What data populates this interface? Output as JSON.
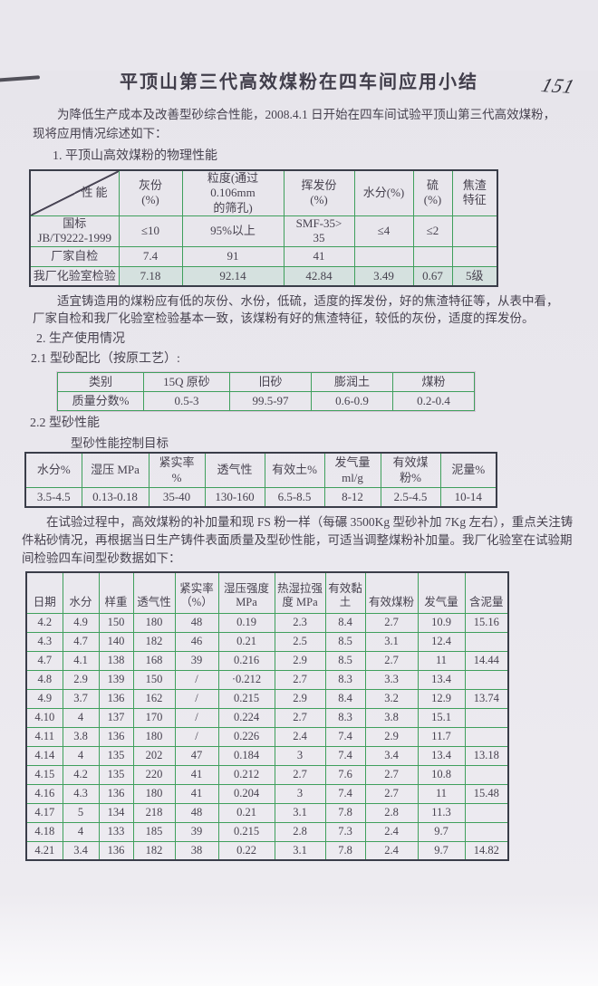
{
  "page_number": "151",
  "title": "平顶山第三代高效煤粉在四车间应用小结",
  "paragraphs": {
    "intro": "为降低生产成本及改善型砂综合性能，2008.4.1 日开始在四车间试验平顶山第三代高效煤粉，现将应用情况综述如下：",
    "analysis": "适宜铸造用的煤粉应有低的灰份、水份，低硫，适度的挥发份，好的焦渣特征等，从表中看，厂家自检和我厂化验室检验基本一致，该煤粉有好的焦渣特征，较低的灰份，适度的挥发份。",
    "trial": "在试验过程中，高效煤粉的补加量和现 FS 粉一样（每碾 3500Kg 型砂补加 7Kg 左右），重点关注铸件粘砂情况，再根据当日生产铸件表面质量及型砂性能，可适当调整煤粉补加量。我厂化验室在试验期间检验四车间型砂数据如下："
  },
  "sections": {
    "s1": "1. 平顶山高效煤粉的物理性能",
    "s2": "2. 生产使用情况",
    "s2_1": "2.1 型砂配比（按原工艺）:",
    "s2_2": "2.2 型砂性能",
    "target_label": "型砂性能控制目标"
  },
  "table1": {
    "corner_label": "性能",
    "headers": [
      "灰份\n(%)",
      "粒度(通过 0.106mm\n的筛孔)",
      "挥发份\n(%)",
      "水分(%)",
      "硫\n(%)",
      "焦渣\n特征"
    ],
    "rows": [
      {
        "label": "国标\nJB/T9222-1999",
        "values": [
          "≤10",
          "95%以上",
          "SMF-35>\n35",
          "≤4",
          "≤2",
          ""
        ]
      },
      {
        "label": "厂家自检",
        "values": [
          "7.4",
          "91",
          "41",
          "",
          "",
          ""
        ]
      },
      {
        "label": "我厂化验室检验",
        "values": [
          "7.18",
          "92.14",
          "42.84",
          "3.49",
          "0.67",
          "5级"
        ]
      }
    ]
  },
  "table2": {
    "headers": [
      "类别",
      "15Q 原砂",
      "旧砂",
      "膨润土",
      "煤粉"
    ],
    "row_label": "质量分数%",
    "values": [
      "0.5-3",
      "99.5-97",
      "0.6-0.9",
      "0.2-0.4"
    ]
  },
  "table3": {
    "headers": [
      "水分%",
      "湿压 MPa",
      "紧实率\n%",
      "透气性",
      "有效土%",
      "发气量\nml/g",
      "有效煤\n粉%",
      "泥量%"
    ],
    "values": [
      "3.5-4.5",
      "0.13-0.18",
      "35-40",
      "130-160",
      "6.5-8.5",
      "8-12",
      "2.5-4.5",
      "10-14"
    ]
  },
  "table4": {
    "headers": [
      "日期",
      "水分",
      "样重",
      "透气性",
      "紧实率\n（%）",
      "湿压强度\nMPa",
      "热湿拉强\n度 MPa",
      "有效黏\n土",
      "有效煤粉",
      "发气量",
      "含泥量"
    ],
    "rows": [
      [
        "4.2",
        "4.9",
        "150",
        "180",
        "48",
        "0.19",
        "2.3",
        "8.4",
        "2.7",
        "10.9",
        "15.16"
      ],
      [
        "4.3",
        "4.7",
        "140",
        "182",
        "46",
        "0.21",
        "2.5",
        "8.5",
        "3.1",
        "12.4",
        ""
      ],
      [
        "4.7",
        "4.1",
        "138",
        "168",
        "39",
        "0.216",
        "2.9",
        "8.5",
        "2.7",
        "11",
        "14.44"
      ],
      [
        "4.8",
        "2.9",
        "139",
        "150",
        "/",
        "·0.212",
        "2.7",
        "8.3",
        "3.3",
        "13.4",
        ""
      ],
      [
        "4.9",
        "3.7",
        "136",
        "162",
        "/",
        "0.215",
        "2.9",
        "8.4",
        "3.2",
        "12.9",
        "13.74"
      ],
      [
        "4.10",
        "4",
        "137",
        "170",
        "/",
        "0.224",
        "2.7",
        "8.3",
        "3.8",
        "15.1",
        ""
      ],
      [
        "4.11",
        "3.8",
        "136",
        "180",
        "/",
        "0.226",
        "2.4",
        "7.4",
        "2.9",
        "11.7",
        ""
      ],
      [
        "4.14",
        "4",
        "135",
        "202",
        "47",
        "0.184",
        "3",
        "7.4",
        "3.4",
        "13.4",
        "13.18"
      ],
      [
        "4.15",
        "4.2",
        "135",
        "220",
        "41",
        "0.212",
        "2.7",
        "7.6",
        "2.7",
        "10.8",
        ""
      ],
      [
        "4.16",
        "4.3",
        "136",
        "180",
        "41",
        "0.204",
        "3",
        "7.4",
        "2.7",
        "11",
        "15.48"
      ],
      [
        "4.17",
        "5",
        "134",
        "218",
        "48",
        "0.21",
        "3.1",
        "7.8",
        "2.8",
        "11.3",
        ""
      ],
      [
        "4.18",
        "4",
        "133",
        "185",
        "39",
        "0.215",
        "2.8",
        "7.3",
        "2.4",
        "9.7",
        ""
      ],
      [
        "4.21",
        "3.4",
        "136",
        "182",
        "38",
        "0.22",
        "3.1",
        "7.8",
        "2.4",
        "9.7",
        "14.82"
      ]
    ]
  }
}
